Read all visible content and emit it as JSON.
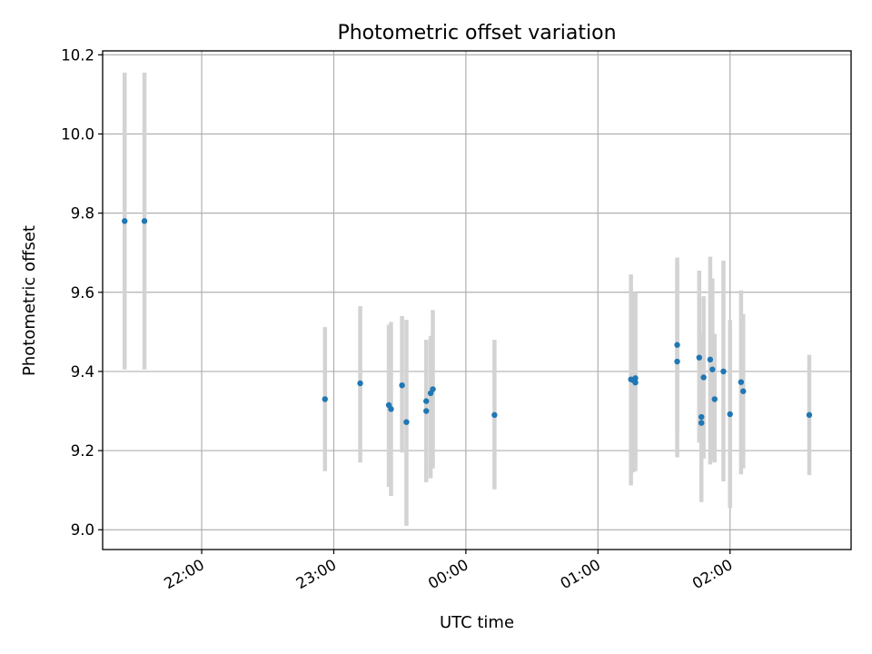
{
  "chart_data": {
    "type": "scatter",
    "title": "Photometric offset variation",
    "xlabel": "UTC time",
    "ylabel": "Photometric offset",
    "xlim": [
      "21:15",
      "02:55"
    ],
    "ylim": [
      8.95,
      10.21
    ],
    "x_ticks": [
      "22:00",
      "23:00",
      "00:00",
      "01:00",
      "02:00"
    ],
    "y_ticks": [
      9.0,
      9.2,
      9.4,
      9.6,
      9.8,
      10.0,
      10.2
    ],
    "y_tick_labels": [
      "9.0",
      "9.2",
      "9.4",
      "9.6",
      "9.8",
      "10.0",
      "10.2"
    ],
    "grid": true,
    "series": [
      {
        "color": "#1f77b4",
        "error_color": "#d3d3d3",
        "points": [
          {
            "t": "21:25",
            "y": 9.78,
            "lo": 9.405,
            "hi": 10.155
          },
          {
            "t": "21:34",
            "y": 9.78,
            "lo": 9.405,
            "hi": 10.155
          },
          {
            "t": "22:56",
            "y": 9.33,
            "lo": 9.148,
            "hi": 9.512
          },
          {
            "t": "23:12",
            "y": 9.37,
            "lo": 9.17,
            "hi": 9.565
          },
          {
            "t": "23:25",
            "y": 9.315,
            "lo": 9.108,
            "hi": 9.518
          },
          {
            "t": "23:26",
            "y": 9.305,
            "lo": 9.085,
            "hi": 9.525
          },
          {
            "t": "23:31",
            "y": 9.365,
            "lo": 9.195,
            "hi": 9.54
          },
          {
            "t": "23:33",
            "y": 9.272,
            "lo": 9.01,
            "hi": 9.53
          },
          {
            "t": "23:42",
            "y": 9.325,
            "lo": 9.17,
            "hi": 9.48
          },
          {
            "t": "23:42",
            "y": 9.3,
            "lo": 9.12,
            "hi": 9.478
          },
          {
            "t": "23:44",
            "y": 9.345,
            "lo": 9.13,
            "hi": 9.49
          },
          {
            "t": "23:45",
            "y": 9.355,
            "lo": 9.155,
            "hi": 9.555
          },
          {
            "t": "00:13",
            "y": 9.29,
            "lo": 9.102,
            "hi": 9.48
          },
          {
            "t": "01:15",
            "y": 9.38,
            "lo": 9.112,
            "hi": 9.645
          },
          {
            "t": "01:16",
            "y": 9.378,
            "lo": 9.145,
            "hi": 9.6
          },
          {
            "t": "01:17",
            "y": 9.383,
            "lo": 9.165,
            "hi": 9.6
          },
          {
            "t": "01:17",
            "y": 9.372,
            "lo": 9.148,
            "hi": 9.598
          },
          {
            "t": "01:36",
            "y": 9.467,
            "lo": 9.245,
            "hi": 9.688
          },
          {
            "t": "01:36",
            "y": 9.425,
            "lo": 9.183,
            "hi": 9.668
          },
          {
            "t": "01:46",
            "y": 9.435,
            "lo": 9.22,
            "hi": 9.655
          },
          {
            "t": "01:47",
            "y": 9.285,
            "lo": 9.085,
            "hi": 9.495
          },
          {
            "t": "01:47",
            "y": 9.27,
            "lo": 9.07,
            "hi": 9.47
          },
          {
            "t": "01:48",
            "y": 9.385,
            "lo": 9.18,
            "hi": 9.59
          },
          {
            "t": "01:51",
            "y": 9.43,
            "lo": 9.165,
            "hi": 9.69
          },
          {
            "t": "01:52",
            "y": 9.405,
            "lo": 9.175,
            "hi": 9.635
          },
          {
            "t": "01:53",
            "y": 9.33,
            "lo": 9.17,
            "hi": 9.495
          },
          {
            "t": "01:57",
            "y": 9.4,
            "lo": 9.122,
            "hi": 9.68
          },
          {
            "t": "02:00",
            "y": 9.292,
            "lo": 9.055,
            "hi": 9.53
          },
          {
            "t": "02:05",
            "y": 9.373,
            "lo": 9.14,
            "hi": 9.605
          },
          {
            "t": "02:06",
            "y": 9.35,
            "lo": 9.155,
            "hi": 9.545
          },
          {
            "t": "02:36",
            "y": 9.29,
            "lo": 9.138,
            "hi": 9.442
          }
        ]
      }
    ]
  }
}
